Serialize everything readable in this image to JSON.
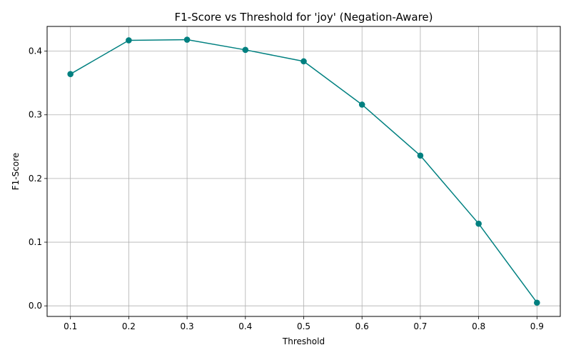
{
  "chart_data": {
    "type": "line",
    "title": "F1-Score vs Threshold for 'joy' (Negation-Aware)",
    "xlabel": "Threshold",
    "ylabel": "F1-Score",
    "x": [
      0.1,
      0.2,
      0.3,
      0.4,
      0.5,
      0.6,
      0.7,
      0.8,
      0.9
    ],
    "series": [
      {
        "values": [
          0.364,
          0.417,
          0.418,
          0.402,
          0.384,
          0.316,
          0.236,
          0.129,
          0.005
        ]
      }
    ],
    "xticks": [
      "0.1",
      "0.2",
      "0.3",
      "0.4",
      "0.5",
      "0.6",
      "0.7",
      "0.8",
      "0.9"
    ],
    "yticks": [
      "0.0",
      "0.1",
      "0.2",
      "0.3",
      "0.4"
    ],
    "xlim": [
      0.06,
      0.94
    ],
    "ylim": [
      -0.0166,
      0.4388
    ],
    "grid": true,
    "line_color": "#008080",
    "grid_color": "#b0b0b0"
  }
}
